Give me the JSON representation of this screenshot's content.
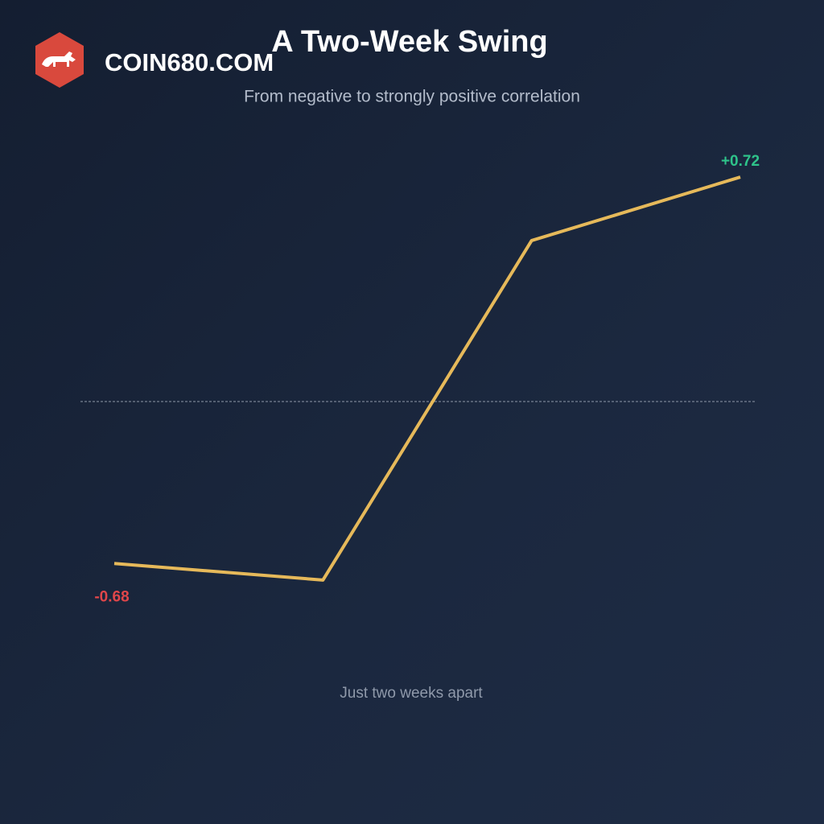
{
  "brand": "COIN680.COM",
  "chart_data": {
    "type": "line",
    "title": "A Two-Week Swing",
    "subtitle": "From negative to strongly positive correlation",
    "x_label": "Just two weeks apart",
    "categories": [
      null,
      null,
      null,
      null
    ],
    "series": [
      {
        "name": null,
        "color": "#e6b95a",
        "values": [
          -0.68,
          -0.74,
          0.49,
          0.72
        ],
        "value_labels": [
          "-0.68",
          null,
          null,
          "+0.72"
        ]
      }
    ],
    "ylim": [
      -1,
      1
    ]
  }
}
